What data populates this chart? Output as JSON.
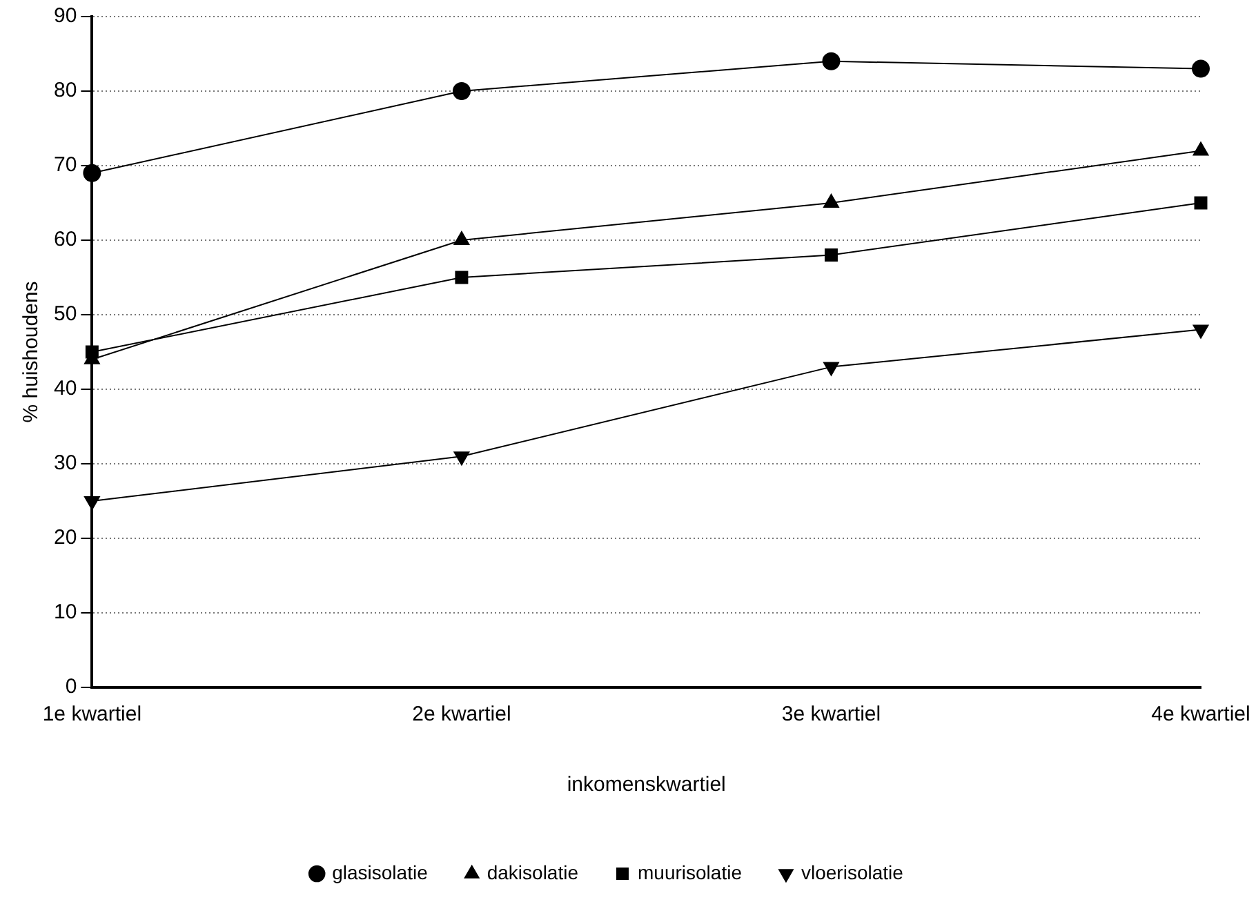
{
  "chart_data": {
    "type": "line",
    "xlabel": "inkomenskwartiel",
    "ylabel": "% huishoudens",
    "categories": [
      "1e kwartiel",
      "2e kwartiel",
      "3e kwartiel",
      "4e kwartiel"
    ],
    "series": [
      {
        "name": "glasisolatie",
        "color": "#000000",
        "marker": "circle",
        "values": [
          69,
          80,
          84,
          83
        ]
      },
      {
        "name": "dakisolatie",
        "color": "#000000",
        "marker": "triangle",
        "values": [
          44,
          60,
          65,
          72
        ]
      },
      {
        "name": "muurisolatie",
        "color": "#000000",
        "marker": "square",
        "values": [
          45,
          55,
          58,
          65
        ]
      },
      {
        "name": "vloerisolatie",
        "color": "#000000",
        "marker": "triangle-down",
        "values": [
          25,
          31,
          43,
          48
        ]
      }
    ],
    "ylim": [
      0,
      90
    ],
    "yticks": [
      0,
      10,
      20,
      30,
      40,
      50,
      60,
      70,
      80,
      90
    ],
    "grid": "y",
    "legend": "bottom",
    "line_style": "solid"
  }
}
